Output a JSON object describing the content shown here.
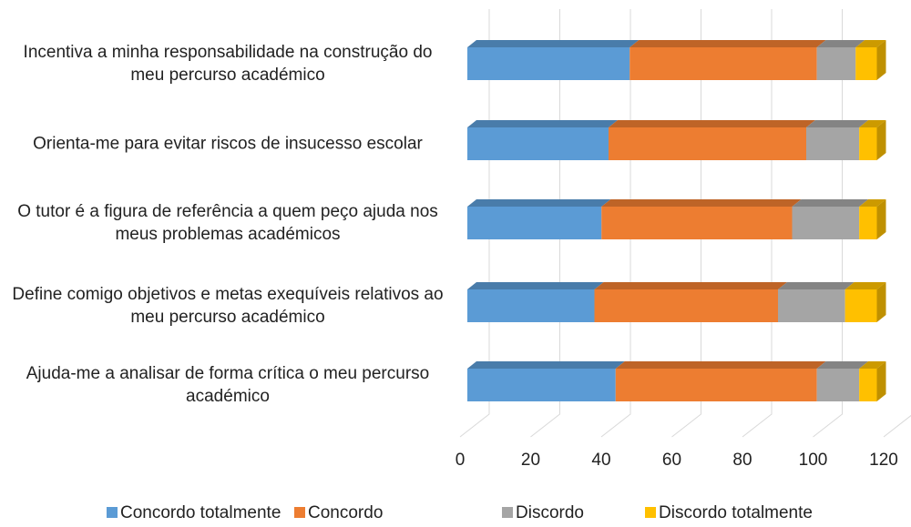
{
  "chart_data": {
    "type": "bar3d_stacked_horizontal",
    "categories": [
      "Incentiva  a minha responsabilidade na construção do meu percurso académico",
      "Orienta-me para evitar riscos de insucesso escolar",
      "O tutor é a figura de referência a quem peço ajuda nos meus problemas académicos",
      "Define comigo objetivos  e metas exequíveis relativos ao meu percurso académico",
      "Ajuda-me a analisar de forma crítica o meu percurso académico"
    ],
    "series": [
      {
        "name": "Concordo totalmente",
        "color": "#5b9bd5",
        "values": [
          46,
          40,
          38,
          36,
          42
        ]
      },
      {
        "name": "Concordo",
        "color": "#ed7d31",
        "values": [
          53,
          56,
          54,
          52,
          57
        ]
      },
      {
        "name": "Discordo",
        "color": "#a5a5a5",
        "values": [
          11,
          15,
          19,
          19,
          12
        ]
      },
      {
        "name": "Discordo  totalmente",
        "color": "#ffc000",
        "values": [
          6,
          5,
          5,
          9,
          5
        ]
      }
    ],
    "xlim": [
      0,
      120
    ],
    "xticks": [
      0,
      20,
      40,
      60,
      80,
      100,
      120
    ],
    "grid": true,
    "legend": "bottom"
  }
}
